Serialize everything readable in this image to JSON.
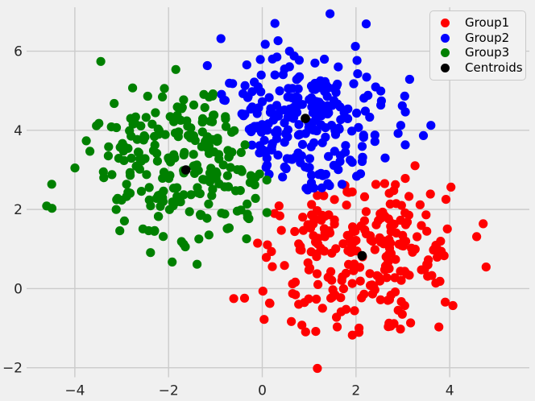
{
  "figure": {
    "background": "#f0f0f0",
    "grid_color": "#cbcbcb",
    "tick_color": "#262626",
    "legend_background": "#f2f2f2",
    "legend_border": "#c9c9c9"
  },
  "chart_data": {
    "type": "scatter",
    "title": "",
    "xlabel": "",
    "ylabel": "",
    "xlim": [
      -5.03,
      5.7
    ],
    "ylim": [
      -2.24,
      7.11
    ],
    "xticks": [
      -4,
      -2,
      0,
      2,
      4
    ],
    "yticks": [
      -2,
      0,
      2,
      4,
      6
    ],
    "grid": true,
    "marker_diameter_px": 11.2,
    "coloring": "nearest-centroid (k-means assignment)",
    "legend": {
      "position": "upper-right",
      "entries": [
        {
          "label": "Group1",
          "color": "#ff0000"
        },
        {
          "label": "Group2",
          "color": "#0000ff"
        },
        {
          "label": "Group3",
          "color": "#008000"
        },
        {
          "label": "Centroids",
          "color": "#000000"
        }
      ]
    },
    "series": [
      {
        "name": "Group1",
        "color": "#ff0000",
        "center": [
          2.13,
          0.83
        ],
        "std": 1.05,
        "count": 250
      },
      {
        "name": "Group2",
        "color": "#0000ff",
        "center": [
          0.92,
          4.3
        ],
        "std": 0.92,
        "count": 250
      },
      {
        "name": "Group3",
        "color": "#008000",
        "center": [
          -1.63,
          3.0
        ],
        "std": 1.0,
        "count": 250
      },
      {
        "name": "Centroids",
        "color": "#000000",
        "points": [
          [
            2.13,
            0.83
          ],
          [
            0.92,
            4.3
          ],
          [
            -1.63,
            3.0
          ]
        ]
      }
    ]
  }
}
